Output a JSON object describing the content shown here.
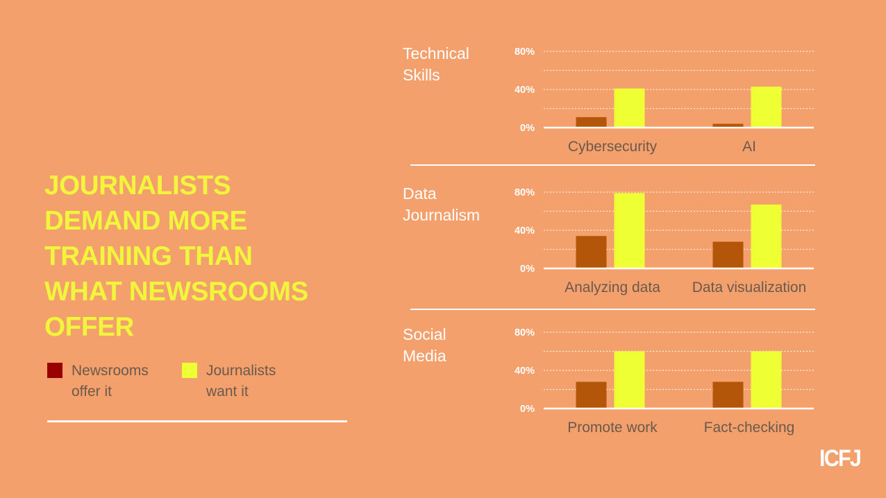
{
  "headline": [
    "JOURNALISTS",
    "DEMAND MORE",
    "TRAINING THAN",
    "WHAT NEWSROOMS",
    "OFFER"
  ],
  "legend": [
    {
      "label": [
        "Newsrooms",
        "offer it"
      ],
      "color": "#990000"
    },
    {
      "label": [
        "Journalists",
        "want it"
      ],
      "color": "#eeff33"
    }
  ],
  "logo": "ICFJ",
  "colors": {
    "background": "#f4a06d",
    "offer_bar": "#b35609",
    "want_bar": "#eeff33",
    "headline": "#f1f53c"
  },
  "chart_data": [
    {
      "type": "bar",
      "title": [
        "Technical",
        "Skills"
      ],
      "categories": [
        "Cybersecurity",
        "AI"
      ],
      "series": [
        {
          "name": "Newsrooms offer it",
          "values": [
            11,
            4
          ]
        },
        {
          "name": "Journalists want it",
          "values": [
            41,
            43
          ]
        }
      ],
      "yticks": [
        "0%",
        "40%",
        "80%"
      ],
      "ylim": [
        0,
        80
      ],
      "grid": true
    },
    {
      "type": "bar",
      "title": [
        "Data",
        "Journalism"
      ],
      "categories": [
        "Analyzing data",
        "Data visualization"
      ],
      "series": [
        {
          "name": "Newsrooms offer it",
          "values": [
            34,
            28
          ]
        },
        {
          "name": "Journalists want it",
          "values": [
            79,
            67
          ]
        }
      ],
      "yticks": [
        "0%",
        "40%",
        "80%"
      ],
      "ylim": [
        0,
        80
      ],
      "grid": true
    },
    {
      "type": "bar",
      "title": [
        "Social",
        "Media"
      ],
      "categories": [
        "Promote work",
        "Fact-checking"
      ],
      "series": [
        {
          "name": "Newsrooms offer it",
          "values": [
            28,
            28
          ]
        },
        {
          "name": "Journalists want it",
          "values": [
            60,
            60
          ]
        }
      ],
      "yticks": [
        "0%",
        "40%",
        "80%"
      ],
      "ylim": [
        0,
        80
      ],
      "grid": true
    }
  ]
}
